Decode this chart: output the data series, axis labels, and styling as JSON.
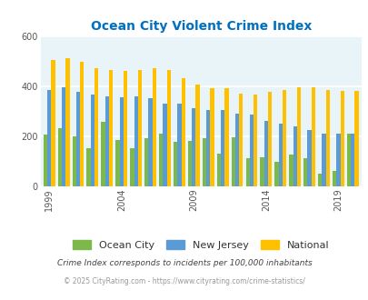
{
  "title": "Ocean City Violent Crime Index",
  "years": [
    1999,
    2000,
    2001,
    2002,
    2003,
    2004,
    2005,
    2006,
    2007,
    2008,
    2009,
    2010,
    2011,
    2012,
    2013,
    2014,
    2015,
    2016,
    2017,
    2018,
    2019,
    2020
  ],
  "ocean_city": [
    205,
    230,
    200,
    150,
    255,
    185,
    150,
    190,
    210,
    175,
    180,
    190,
    130,
    195,
    110,
    115,
    95,
    125,
    110,
    50,
    60,
    210
  ],
  "new_jersey": [
    385,
    395,
    375,
    365,
    360,
    355,
    360,
    350,
    330,
    330,
    310,
    305,
    305,
    290,
    285,
    260,
    250,
    240,
    225,
    210,
    210,
    210
  ],
  "national": [
    505,
    510,
    495,
    470,
    465,
    460,
    465,
    470,
    465,
    430,
    405,
    390,
    390,
    370,
    365,
    375,
    385,
    395,
    395,
    385,
    380,
    380
  ],
  "ylim": [
    0,
    600
  ],
  "yticks": [
    0,
    200,
    400,
    600
  ],
  "xticks": [
    1999,
    2004,
    2009,
    2014,
    2019
  ],
  "bar_width": 0.27,
  "ocean_city_color": "#7db84a",
  "new_jersey_color": "#5b9bd5",
  "national_color": "#ffc000",
  "bg_color": "#e8f4f8",
  "grid_color": "#ffffff",
  "title_color": "#0070c0",
  "legend_labels": [
    "Ocean City",
    "New Jersey",
    "National"
  ],
  "footnote1": "Crime Index corresponds to incidents per 100,000 inhabitants",
  "footnote2": "© 2025 CityRating.com - https://www.cityrating.com/crime-statistics/",
  "footnote1_color": "#444444",
  "footnote2_color": "#999999"
}
